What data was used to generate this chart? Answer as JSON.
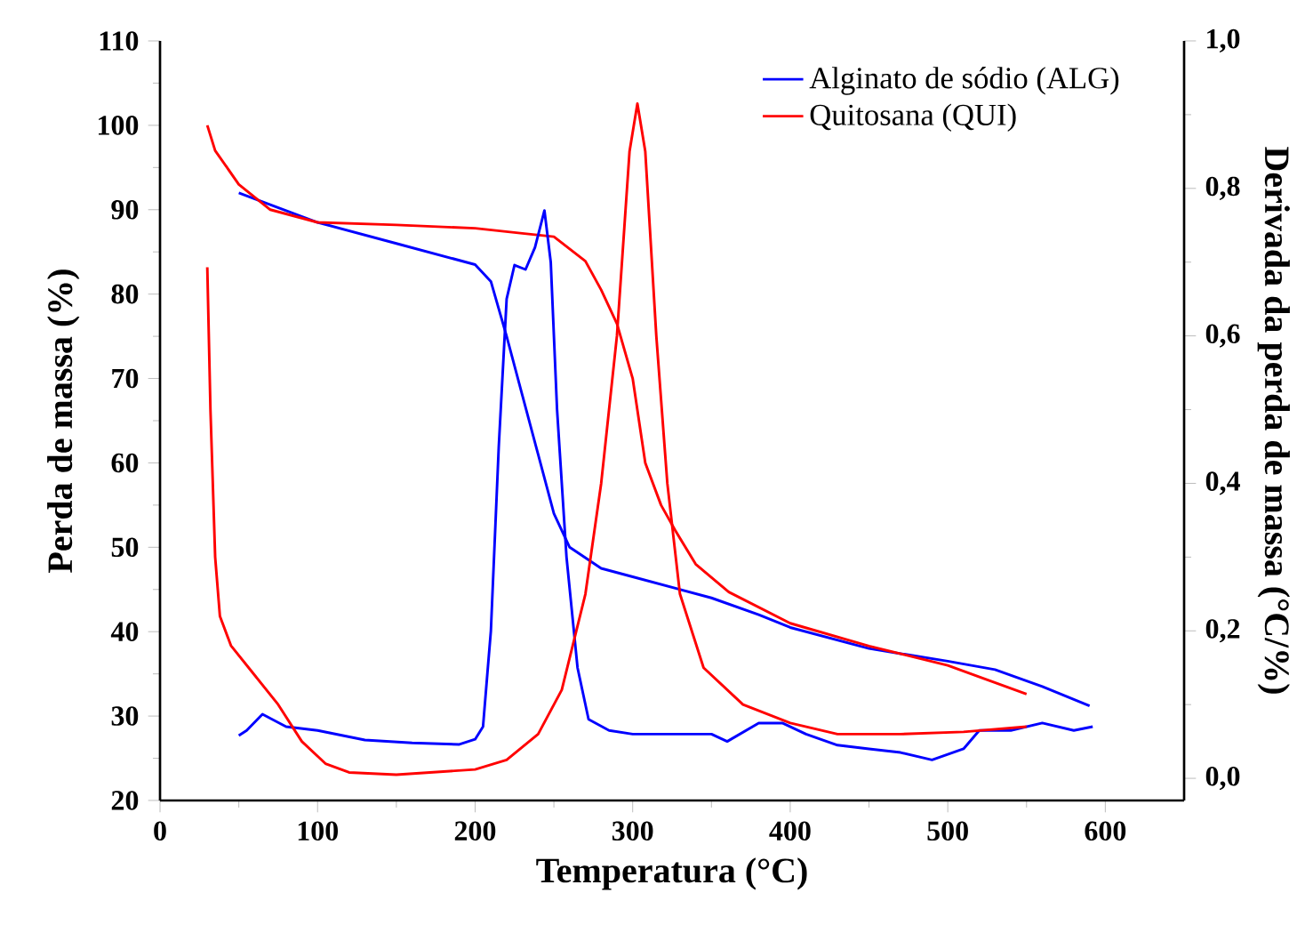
{
  "chart_data": {
    "type": "line",
    "xlabel": "Temperatura (°C)",
    "ylabel": "Perda de massa (%)",
    "y2label": "Derivada da perda de massa (°C/%)",
    "xlim": [
      0,
      650
    ],
    "xticks": [
      0,
      100,
      200,
      300,
      400,
      500,
      600
    ],
    "ylim": [
      20,
      110
    ],
    "yticks": [
      20,
      30,
      40,
      50,
      60,
      70,
      80,
      90,
      100,
      110
    ],
    "y2lim": [
      -0.03,
      1.0
    ],
    "y2ticks": [
      {
        "value": 0,
        "label": "0,0"
      },
      {
        "value": 0.2,
        "label": "0,2"
      },
      {
        "value": 0.4,
        "label": "0,4"
      },
      {
        "value": 0.6,
        "label": "0,6"
      },
      {
        "value": 0.8,
        "label": "0,8"
      },
      {
        "value": 1.0,
        "label": "1,0"
      }
    ],
    "legend": "top right",
    "line_style": "solid",
    "series": [
      {
        "name": "Alginato de sódio (ALG)",
        "color": "#0000ff",
        "x": [
          50,
          100,
          150,
          200,
          210,
          220,
          230,
          240,
          250,
          260,
          280,
          300,
          350,
          380,
          400,
          450,
          500,
          530,
          560,
          590
        ],
        "values": [
          92,
          88.5,
          86,
          83.5,
          81.5,
          75,
          68,
          61,
          54,
          50,
          47.5,
          46.5,
          44,
          42,
          40.5,
          38,
          36.5,
          35.5,
          33.5,
          31.2
        ]
      },
      {
        "name": "Quitosana (QUI)",
        "color": "#ff0000",
        "x": [
          30,
          35,
          50,
          70,
          100,
          150,
          200,
          230,
          250,
          270,
          280,
          290,
          300,
          308,
          318,
          327,
          340,
          361,
          400,
          450,
          500,
          550
        ],
        "values": [
          100,
          97,
          93,
          90,
          88.5,
          88.2,
          87.8,
          87.2,
          86.8,
          83.9,
          80.5,
          76.5,
          70,
          60,
          55,
          52,
          48,
          44.7,
          41,
          38.3,
          36,
          32.6
        ]
      },
      {
        "color": "#0000ff",
        "axis": "y2",
        "x": [
          50,
          55,
          65,
          80,
          100,
          130,
          160,
          190,
          200,
          205,
          210,
          215,
          220,
          225,
          232,
          238,
          244,
          248,
          252,
          258,
          265,
          272,
          285,
          300,
          350,
          360,
          380,
          395,
          410,
          430,
          450,
          470,
          490,
          510,
          520,
          540,
          560,
          580,
          592
        ],
        "values": [
          0.058,
          0.065,
          0.087,
          0.07,
          0.065,
          0.052,
          0.048,
          0.046,
          0.053,
          0.07,
          0.2,
          0.45,
          0.65,
          0.696,
          0.69,
          0.72,
          0.77,
          0.7,
          0.5,
          0.3,
          0.15,
          0.08,
          0.065,
          0.06,
          0.06,
          0.05,
          0.075,
          0.075,
          0.06,
          0.045,
          0.04,
          0.035,
          0.025,
          0.04,
          0.065,
          0.065,
          0.075,
          0.065,
          0.07
        ]
      },
      {
        "color": "#ff0000",
        "axis": "y2",
        "x": [
          30,
          32,
          35,
          38,
          45,
          60,
          75,
          90,
          105,
          120,
          150,
          200,
          220,
          240,
          255,
          270,
          280,
          290,
          298,
          303,
          308,
          315,
          322,
          330,
          345,
          370,
          400,
          430,
          470,
          510,
          550
        ],
        "values": [
          0.693,
          0.5,
          0.3,
          0.22,
          0.18,
          0.14,
          0.1,
          0.05,
          0.02,
          0.008,
          0.005,
          0.012,
          0.025,
          0.06,
          0.12,
          0.25,
          0.4,
          0.6,
          0.85,
          0.915,
          0.85,
          0.6,
          0.4,
          0.25,
          0.15,
          0.1,
          0.075,
          0.06,
          0.06,
          0.063,
          0.07
        ]
      }
    ]
  }
}
